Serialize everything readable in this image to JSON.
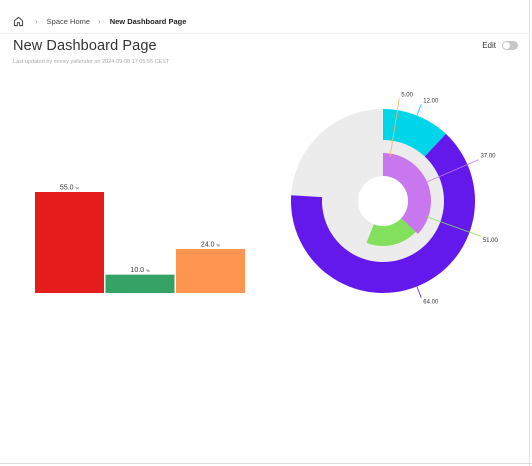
{
  "breadcrumb": {
    "home_icon": "home-icon",
    "items": [
      {
        "label": "Space Home"
      },
      {
        "label": "New Dashboard Page"
      }
    ]
  },
  "page": {
    "title": "New Dashboard Page",
    "subtitle": "Last updated by morey yallender on 2024-09-08 17:05:55 CEST"
  },
  "edit": {
    "label": "Edit",
    "on": false
  },
  "chart_data": [
    {
      "type": "bar",
      "title": "",
      "categories": [
        "",
        "",
        ""
      ],
      "values": [
        55.0,
        10.0,
        24.0
      ],
      "value_labels": [
        "55.0",
        "10.0",
        "24.0"
      ],
      "unit": "%",
      "colors": [
        "#e41c1c",
        "#36a266",
        "#ff9550"
      ],
      "ylim": [
        0,
        55
      ],
      "grid": false,
      "legend": "none"
    },
    {
      "type": "pie",
      "title": "",
      "variant": "nested-donut",
      "rings": [
        {
          "name": "",
          "values": [
            12.0,
            64.0
          ],
          "value_labels": [
            "12.00",
            "64.00"
          ],
          "colors": [
            "#00d5ea",
            "#6419ec"
          ]
        },
        {
          "name": "",
          "values": [
            5.0,
            51.0
          ],
          "value_labels": [
            "5.00",
            "51.00"
          ],
          "colors": [
            "#ffb95a",
            "#82e05d"
          ]
        },
        {
          "name": "",
          "values": [
            37.0
          ],
          "value_labels": [
            "37.00"
          ],
          "colors": [
            "#c977ef"
          ]
        }
      ],
      "total": 100,
      "track_color": "#ececec",
      "legend": "none"
    }
  ]
}
